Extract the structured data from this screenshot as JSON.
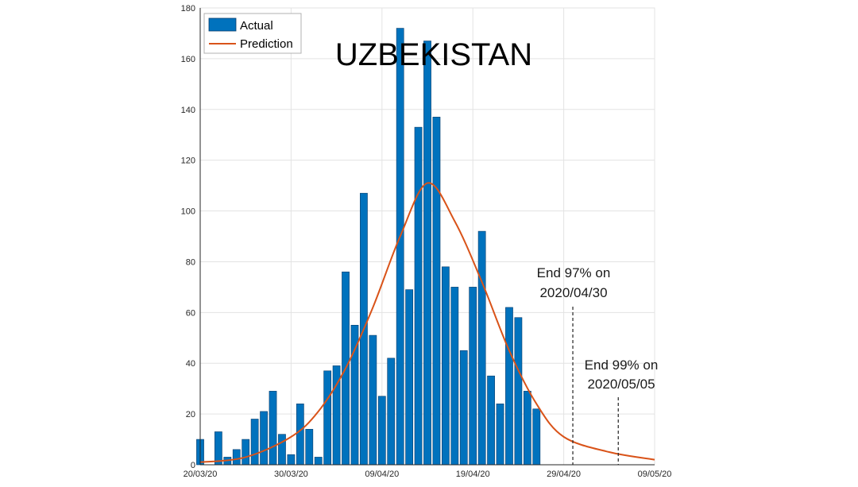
{
  "chart_data": {
    "type": "bar",
    "title": "UZBEKISTAN",
    "xlabel": "",
    "ylabel": "",
    "x_start": "20/03/20",
    "x_end": "09/05/20",
    "xticks": [
      "20/03/20",
      "30/03/20",
      "09/04/20",
      "19/04/20",
      "29/04/20",
      "09/05/20"
    ],
    "ylim": [
      0,
      180
    ],
    "yticks": [
      0,
      20,
      40,
      60,
      80,
      100,
      120,
      140,
      160,
      180
    ],
    "grid": true,
    "legend_position": "top-left",
    "series": [
      {
        "name": "Actual",
        "kind": "bar",
        "color": "#0072BD",
        "dates": [
          "20/03/20",
          "21/03/20",
          "22/03/20",
          "23/03/20",
          "24/03/20",
          "25/03/20",
          "26/03/20",
          "27/03/20",
          "28/03/20",
          "29/03/20",
          "30/03/20",
          "31/03/20",
          "01/04/20",
          "02/04/20",
          "03/04/20",
          "04/04/20",
          "05/04/20",
          "06/04/20",
          "07/04/20",
          "08/04/20",
          "09/04/20",
          "10/04/20",
          "11/04/20",
          "12/04/20",
          "13/04/20",
          "14/04/20",
          "15/04/20",
          "16/04/20",
          "17/04/20",
          "18/04/20",
          "19/04/20",
          "20/04/20",
          "21/04/20",
          "22/04/20",
          "23/04/20",
          "24/04/20",
          "25/04/20",
          "26/04/20"
        ],
        "values": [
          10,
          0,
          13,
          3,
          6,
          10,
          18,
          21,
          29,
          12,
          4,
          24,
          14,
          3,
          37,
          39,
          76,
          55,
          107,
          51,
          27,
          42,
          172,
          69,
          133,
          167,
          137,
          78,
          70,
          45,
          70,
          92,
          35,
          24,
          62,
          58,
          29,
          22
        ]
      },
      {
        "name": "Prediction",
        "kind": "line",
        "color": "#D95319",
        "peak_date": "14/04/20",
        "peak_value": 111,
        "x": [
          "20/03/20",
          "25/03/20",
          "30/03/20",
          "02/04/20",
          "05/04/20",
          "08/04/20",
          "11/04/20",
          "14/04/20",
          "17/04/20",
          "20/04/20",
          "23/04/20",
          "26/04/20",
          "29/04/20",
          "04/05/20",
          "09/05/20"
        ],
        "y": [
          1,
          3,
          11,
          21,
          38,
          62,
          90,
          111,
          96,
          72,
          45,
          24,
          11,
          5,
          2
        ]
      }
    ],
    "annotations": [
      {
        "line1": "End 97% on",
        "line2": "2020/04/30",
        "date": "30/04/20"
      },
      {
        "line1": "End 99% on",
        "line2": "2020/05/05",
        "date": "05/05/20"
      }
    ]
  }
}
